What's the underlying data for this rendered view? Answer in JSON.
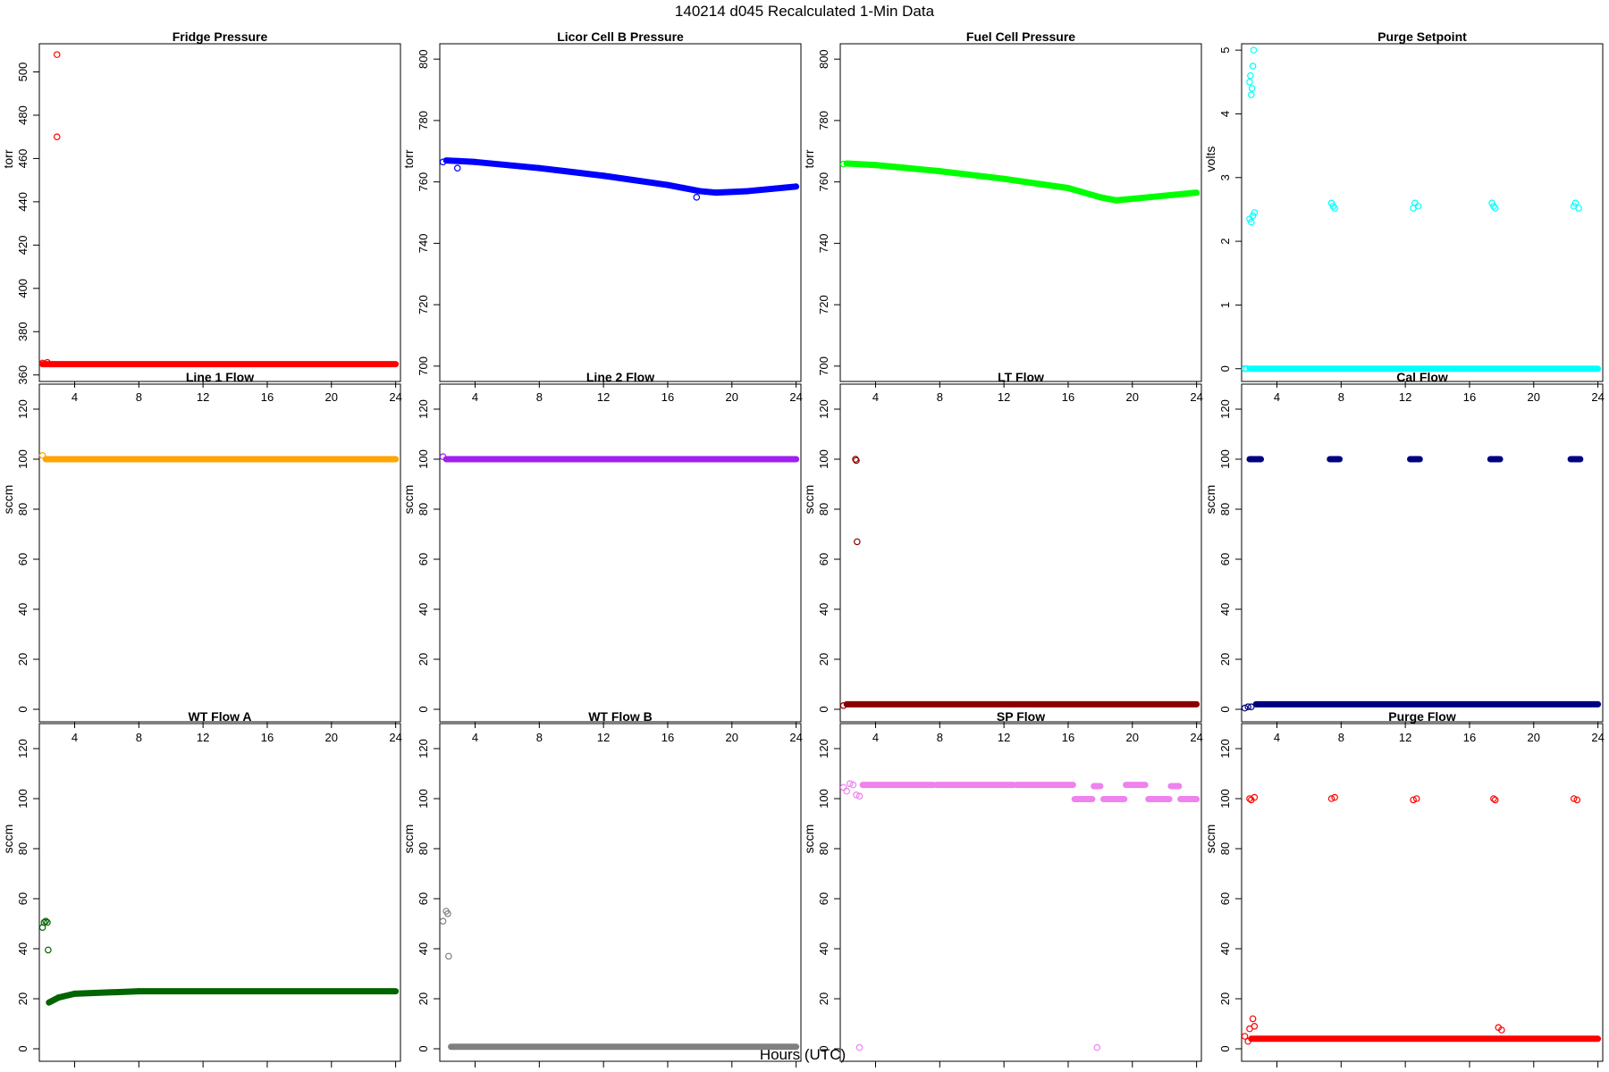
{
  "figure_title": "140214   d045   Recalculated 1-Min Data",
  "common_xlabel": "Hours (UTC)",
  "chart_data": [
    {
      "type": "scatter",
      "title": "Fridge Pressure",
      "ylabel": "torr",
      "color": "#ff0000",
      "xlim": [
        1.8,
        24.3
      ],
      "ylim": [
        357,
        513
      ],
      "xticks": [
        4,
        8,
        12,
        16,
        20,
        24
      ],
      "yticks": [
        360,
        380,
        400,
        420,
        440,
        460,
        480,
        500
      ],
      "series": [
        {
          "name": "Fridge Pressure",
          "segments": [
            [
              2.0,
              24.0,
              365,
              365
            ]
          ],
          "points": [
            [
              2.9,
              508
            ],
            [
              2.9,
              470
            ],
            [
              2.0,
              365.5
            ],
            [
              2.3,
              365.8
            ]
          ]
        }
      ]
    },
    {
      "type": "scatter",
      "title": "Licor Cell B Pressure",
      "ylabel": "torr",
      "color": "#0000ff",
      "xlim": [
        1.8,
        24.3
      ],
      "ylim": [
        695,
        805
      ],
      "xticks": [
        4,
        8,
        12,
        16,
        20,
        24
      ],
      "yticks": [
        700,
        720,
        740,
        760,
        780,
        800
      ],
      "series": [
        {
          "name": "Licor Cell B Pressure",
          "segments": [
            [
              2.2,
              4,
              767,
              766.5
            ],
            [
              4,
              8,
              766.5,
              764.5
            ],
            [
              8,
              12,
              764.5,
              762
            ],
            [
              12,
              16,
              762,
              759
            ],
            [
              16,
              18,
              759,
              757
            ],
            [
              18,
              19,
              757,
              756.5
            ],
            [
              19,
              21,
              756.5,
              757
            ],
            [
              21,
              24,
              757,
              758.5
            ]
          ],
          "points": [
            [
              2.0,
              766.5
            ],
            [
              2.9,
              764.5
            ],
            [
              17.8,
              755
            ]
          ]
        }
      ]
    },
    {
      "type": "scatter",
      "title": "Fuel Cell Pressure",
      "ylabel": "torr",
      "color": "#00ff00",
      "xlim": [
        1.8,
        24.3
      ],
      "ylim": [
        695,
        805
      ],
      "xticks": [
        4,
        8,
        12,
        16,
        20,
        24
      ],
      "yticks": [
        700,
        720,
        740,
        760,
        780,
        800
      ],
      "series": [
        {
          "name": "Fuel Cell Pressure",
          "segments": [
            [
              2.2,
              4,
              766,
              765.5
            ],
            [
              4,
              8,
              765.5,
              763.5
            ],
            [
              8,
              12,
              763.5,
              761
            ],
            [
              12,
              16,
              761,
              758
            ],
            [
              16,
              18,
              758,
              755
            ],
            [
              18,
              19,
              755,
              754
            ],
            [
              19,
              21,
              754,
              755
            ],
            [
              21,
              24,
              755,
              756.5
            ]
          ],
          "points": [
            [
              2.0,
              765.8
            ]
          ]
        }
      ]
    },
    {
      "type": "scatter",
      "title": "Purge Setpoint",
      "ylabel": "volts",
      "color": "#00ffff",
      "xlim": [
        1.8,
        24.3
      ],
      "ylim": [
        -0.2,
        5.1
      ],
      "xticks": [
        4,
        8,
        12,
        16,
        20,
        24
      ],
      "yticks": [
        0,
        1,
        2,
        3,
        4,
        5
      ],
      "series": [
        {
          "name": "Purge Setpoint",
          "segments": [
            [
              2.3,
              24.0,
              0,
              0
            ]
          ],
          "points": [
            [
              2.0,
              0
            ],
            [
              2.1,
              0
            ],
            [
              2.3,
              4.5
            ],
            [
              2.35,
              4.6
            ],
            [
              2.4,
              4.3
            ],
            [
              2.45,
              4.4
            ],
            [
              2.5,
              4.75
            ],
            [
              2.55,
              5.0
            ],
            [
              2.3,
              2.35
            ],
            [
              2.4,
              2.3
            ],
            [
              2.5,
              2.4
            ],
            [
              2.6,
              2.45
            ],
            [
              7.4,
              2.6
            ],
            [
              7.5,
              2.55
            ],
            [
              7.6,
              2.52
            ],
            [
              12.5,
              2.52
            ],
            [
              12.6,
              2.6
            ],
            [
              12.8,
              2.55
            ],
            [
              17.4,
              2.6
            ],
            [
              17.5,
              2.55
            ],
            [
              17.6,
              2.52
            ],
            [
              22.5,
              2.55
            ],
            [
              22.6,
              2.6
            ],
            [
              22.8,
              2.52
            ]
          ]
        }
      ]
    },
    {
      "type": "scatter",
      "title": "Line 1 Flow",
      "ylabel": "sccm",
      "color": "#ffa500",
      "xlim": [
        1.8,
        24.3
      ],
      "ylim": [
        -5,
        130
      ],
      "xticks": [
        4,
        8,
        12,
        16,
        20,
        24
      ],
      "yticks": [
        0,
        20,
        40,
        60,
        80,
        100,
        120
      ],
      "series": [
        {
          "name": "Line 1 Flow",
          "segments": [
            [
              2.2,
              24.0,
              100,
              100
            ]
          ],
          "points": [
            [
              2.0,
              101.5
            ]
          ]
        }
      ]
    },
    {
      "type": "scatter",
      "title": "Line 2 Flow",
      "ylabel": "sccm",
      "color": "#a020f0",
      "xlim": [
        1.8,
        24.3
      ],
      "ylim": [
        -5,
        130
      ],
      "xticks": [
        4,
        8,
        12,
        16,
        20,
        24
      ],
      "yticks": [
        0,
        20,
        40,
        60,
        80,
        100,
        120
      ],
      "series": [
        {
          "name": "Line 2 Flow",
          "segments": [
            [
              2.2,
              24.0,
              100,
              100
            ]
          ],
          "points": [
            [
              2.0,
              101
            ]
          ]
        }
      ]
    },
    {
      "type": "scatter",
      "title": "LT Flow",
      "ylabel": "sccm",
      "color": "#8b0000",
      "xlim": [
        1.8,
        24.3
      ],
      "ylim": [
        -5,
        130
      ],
      "xticks": [
        4,
        8,
        12,
        16,
        20,
        24
      ],
      "yticks": [
        0,
        20,
        40,
        60,
        80,
        100,
        120
      ],
      "series": [
        {
          "name": "LT Flow",
          "segments": [
            [
              2.2,
              24.0,
              2,
              2
            ]
          ],
          "points": [
            [
              2.0,
              1.5
            ],
            [
              2.75,
              100
            ],
            [
              2.8,
              99.5
            ],
            [
              2.85,
              67
            ]
          ]
        }
      ]
    },
    {
      "type": "scatter",
      "title": "Cal Flow",
      "ylabel": "sccm",
      "color": "#000080",
      "xlim": [
        1.8,
        24.3
      ],
      "ylim": [
        -5,
        130
      ],
      "xticks": [
        4,
        8,
        12,
        16,
        20,
        24
      ],
      "yticks": [
        0,
        20,
        40,
        60,
        80,
        100,
        120
      ],
      "series": [
        {
          "name": "Cal Flow",
          "segments": [
            [
              2.7,
              24.0,
              2,
              2
            ],
            [
              2.3,
              3.0,
              100,
              100
            ],
            [
              7.3,
              7.9,
              100,
              100
            ],
            [
              12.3,
              12.9,
              100,
              100
            ],
            [
              17.3,
              17.9,
              100,
              100
            ],
            [
              22.3,
              22.9,
              100,
              100
            ]
          ],
          "points": [
            [
              2.0,
              0.5
            ],
            [
              2.2,
              1.0
            ],
            [
              2.4,
              1.0
            ]
          ]
        }
      ]
    },
    {
      "type": "scatter",
      "title": "WT Flow A",
      "ylabel": "sccm",
      "color": "#006400",
      "xlim": [
        1.8,
        24.3
      ],
      "ylim": [
        -5,
        130
      ],
      "xticks": [
        4,
        8,
        12,
        16,
        20,
        24
      ],
      "yticks": [
        0,
        20,
        40,
        60,
        80,
        100,
        120
      ],
      "series": [
        {
          "name": "WT Flow A",
          "segments": [
            [
              2.4,
              3.0,
              18.5,
              20.5
            ],
            [
              3.0,
              4.0,
              20.5,
              22
            ],
            [
              4.0,
              8.0,
              22,
              23
            ],
            [
              8.0,
              24.0,
              23,
              23
            ]
          ],
          "points": [
            [
              2.0,
              48.5
            ],
            [
              2.1,
              50.5
            ],
            [
              2.2,
              51
            ],
            [
              2.3,
              50.5
            ],
            [
              2.35,
              39.5
            ]
          ]
        }
      ]
    },
    {
      "type": "scatter",
      "title": "WT Flow B",
      "ylabel": "sccm",
      "color": "#808080",
      "xlim": [
        1.8,
        24.3
      ],
      "ylim": [
        -5,
        130
      ],
      "xticks": [
        4,
        8,
        12,
        16,
        20,
        24
      ],
      "yticks": [
        0,
        20,
        40,
        60,
        80,
        100,
        120
      ],
      "series": [
        {
          "name": "WT Flow B",
          "segments": [
            [
              2.5,
              24.0,
              0.8,
              0.8
            ]
          ],
          "points": [
            [
              2.0,
              51
            ],
            [
              2.2,
              55
            ],
            [
              2.3,
              54
            ],
            [
              2.35,
              37
            ]
          ]
        }
      ]
    },
    {
      "type": "scatter",
      "title": "SP Flow",
      "ylabel": "sccm",
      "color": "#ee82ee",
      "xlim": [
        1.8,
        24.3
      ],
      "ylim": [
        -5,
        130
      ],
      "xticks": [
        4,
        8,
        12,
        16,
        20,
        24
      ],
      "yticks": [
        0,
        20,
        40,
        60,
        80,
        100,
        120
      ],
      "series": [
        {
          "name": "SP Flow",
          "segments": [
            [
              3.2,
              7.6,
              105.5,
              105.5
            ],
            [
              7.8,
              12.6,
              105.5,
              105.5
            ],
            [
              12.8,
              16.3,
              105.5,
              105.5
            ],
            [
              16.4,
              17.5,
              99.8,
              99.8
            ],
            [
              17.6,
              18.0,
              105,
              105
            ],
            [
              18.2,
              19.5,
              99.8,
              99.8
            ],
            [
              19.6,
              20.8,
              105.5,
              105.5
            ],
            [
              21.0,
              22.3,
              99.8,
              99.8
            ],
            [
              22.4,
              22.9,
              105,
              105
            ],
            [
              23.0,
              24.0,
              99.8,
              99.8
            ]
          ],
          "points": [
            [
              2.0,
              104.5
            ],
            [
              2.2,
              103
            ],
            [
              2.4,
              106
            ],
            [
              2.6,
              105.5
            ],
            [
              2.8,
              101.5
            ],
            [
              3.0,
              101
            ],
            [
              3.0,
              0.5
            ],
            [
              17.8,
              0.5
            ]
          ]
        }
      ]
    },
    {
      "type": "scatter",
      "title": "Purge Flow",
      "ylabel": "sccm",
      "color": "#ff0000",
      "xlim": [
        1.8,
        24.3
      ],
      "ylim": [
        -5,
        130
      ],
      "xticks": [
        4,
        8,
        12,
        16,
        20,
        24
      ],
      "yticks": [
        0,
        20,
        40,
        60,
        80,
        100,
        120
      ],
      "series": [
        {
          "name": "Purge Flow",
          "segments": [
            [
              2.4,
              24.0,
              4,
              4
            ]
          ],
          "points": [
            [
              2.0,
              5
            ],
            [
              2.2,
              3
            ],
            [
              2.3,
              8
            ],
            [
              2.5,
              12
            ],
            [
              2.6,
              9
            ],
            [
              17.8,
              8.5
            ],
            [
              18.0,
              7.5
            ],
            [
              2.3,
              100
            ],
            [
              2.4,
              99.5
            ],
            [
              2.6,
              100.5
            ],
            [
              7.4,
              100
            ],
            [
              7.6,
              100.5
            ],
            [
              12.5,
              99.5
            ],
            [
              12.7,
              100
            ],
            [
              17.5,
              100
            ],
            [
              17.6,
              99.5
            ],
            [
              22.5,
              100
            ],
            [
              22.7,
              99.5
            ]
          ]
        }
      ]
    }
  ]
}
